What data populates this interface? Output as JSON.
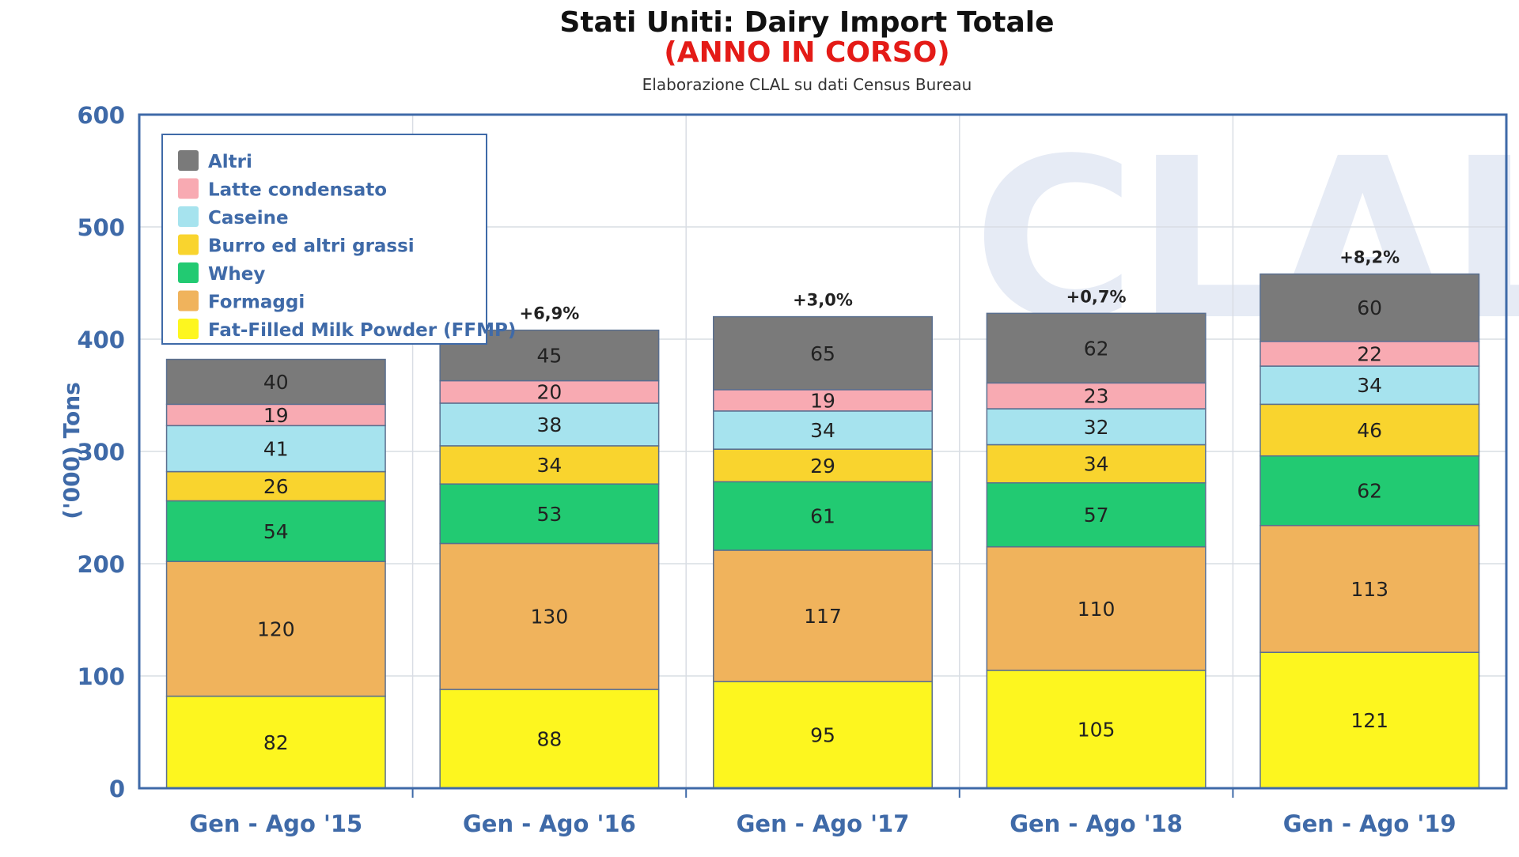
{
  "chart_data": {
    "type": "bar",
    "stacked": true,
    "title": "Stati Uniti: Dairy Import Totale",
    "title_line2": "(ANNO IN CORSO)",
    "subtitle": "Elaborazione CLAL su dati Census Bureau",
    "ylabel": "('000) Tons",
    "xlabel": "",
    "ylim": [
      0,
      600
    ],
    "yticks": [
      "0",
      "100",
      "200",
      "300",
      "400",
      "500",
      "600"
    ],
    "grid": true,
    "legend_position": "top-left",
    "watermark": "CLAL",
    "categories": [
      "Gen - Ago '15",
      "Gen - Ago '16",
      "Gen - Ago '17",
      "Gen - Ago '18",
      "Gen - Ago '19"
    ],
    "totals_change": [
      "",
      "+6,9%",
      "+3,0%",
      "+0,7%",
      "+8,2%"
    ],
    "series": [
      {
        "name": "Fat-Filled Milk Powder (FFMP)",
        "color": "#fdf61f",
        "values": [
          82,
          88,
          95,
          105,
          121
        ]
      },
      {
        "name": "Formaggi",
        "color": "#f0b35c",
        "values": [
          120,
          130,
          117,
          110,
          113
        ]
      },
      {
        "name": "Whey",
        "color": "#22ca72",
        "values": [
          54,
          53,
          61,
          57,
          62
        ]
      },
      {
        "name": "Burro ed altri grassi",
        "color": "#f9d42e",
        "values": [
          26,
          34,
          29,
          34,
          46
        ]
      },
      {
        "name": "Caseine",
        "color": "#a6e3ee",
        "values": [
          41,
          38,
          34,
          32,
          34
        ]
      },
      {
        "name": "Latte condensato",
        "color": "#f8aab2",
        "values": [
          19,
          20,
          19,
          23,
          22
        ]
      },
      {
        "name": "Altri",
        "color": "#7a7a7a",
        "values": [
          40,
          45,
          65,
          62,
          60
        ]
      }
    ],
    "colors": {
      "axis": "#3f6aa8",
      "grid": "#d9dde4",
      "title_accent": "#e41b17"
    }
  }
}
